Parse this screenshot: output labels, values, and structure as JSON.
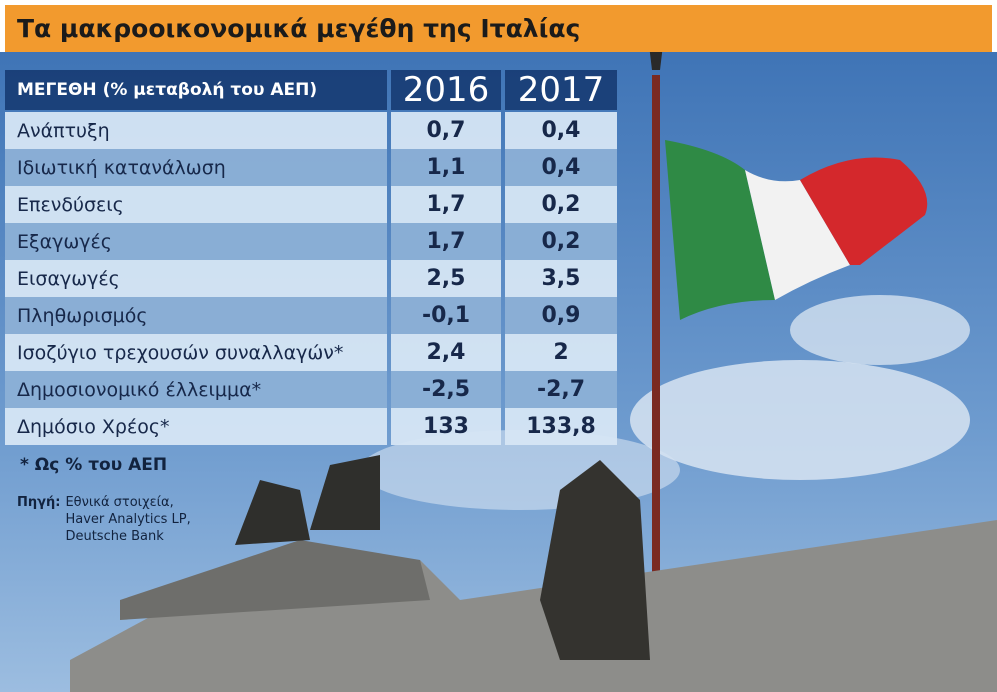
{
  "header": {
    "title": "Τα μακροοικονομικά μεγέθη της Ιταλίας"
  },
  "table": {
    "columns": [
      "ΜΕΓΕΘΗ (% μεταβολή του ΑΕΠ)",
      "2016",
      "2017"
    ],
    "rows": [
      [
        "Ανάπτυξη",
        "0,7",
        "0,4"
      ],
      [
        "Ιδιωτική κατανάλωση",
        "1,1",
        "0,4"
      ],
      [
        "Επενδύσεις",
        "1,7",
        "0,2"
      ],
      [
        "Εξαγωγές",
        "1,7",
        "0,2"
      ],
      [
        "Εισαγωγές",
        "2,5",
        "3,5"
      ],
      [
        "Πληθωρισμός",
        "-0,1",
        "0,9"
      ],
      [
        "Ισοζύγιο τρεχουσών συναλλαγών*",
        "2,4",
        "2"
      ],
      [
        "Δημοσιονομικό έλλειμμα*",
        "-2,5",
        "-2,7"
      ],
      [
        "Δημόσιο Χρέος*",
        "133",
        "133,8"
      ]
    ]
  },
  "footnote": "* Ως % του ΑΕΠ",
  "source": {
    "label": "Πηγή:",
    "lines": [
      "Εθνικά στοιχεία,",
      "Haver Analytics LP,",
      "Deutsche Bank"
    ]
  }
}
